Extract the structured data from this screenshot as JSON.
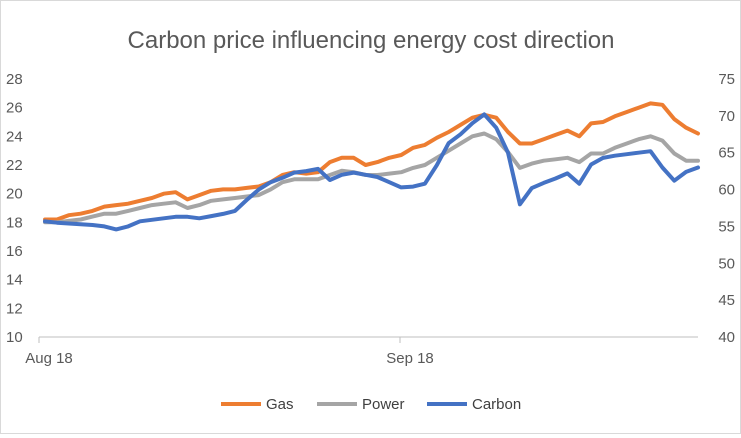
{
  "chart_data": {
    "type": "line",
    "title": "Carbon price influencing energy cost direction",
    "x_tick_labels": [
      "Aug 18",
      "Sep 18"
    ],
    "y_left": {
      "ticks": [
        10,
        12,
        14,
        16,
        18,
        20,
        22,
        24,
        26,
        28
      ],
      "range": [
        10,
        28
      ]
    },
    "y_right": {
      "ticks": [
        40,
        45,
        50,
        55,
        60,
        65,
        70,
        75
      ],
      "range": [
        40,
        75
      ]
    },
    "legend_position": "bottom",
    "series": [
      {
        "name": "Gas",
        "axis": "left",
        "color": "#ED7D31",
        "values": [
          18.2,
          18.2,
          18.5,
          18.6,
          18.8,
          19.1,
          19.2,
          19.3,
          19.5,
          19.7,
          20.0,
          20.1,
          19.6,
          19.9,
          20.2,
          20.3,
          20.3,
          20.4,
          20.5,
          20.8,
          21.3,
          21.5,
          21.4,
          21.5,
          22.2,
          22.5,
          22.5,
          22.0,
          22.2,
          22.5,
          22.7,
          23.2,
          23.4,
          23.9,
          24.3,
          24.8,
          25.3,
          25.5,
          25.3,
          24.3,
          23.5,
          23.5,
          23.8,
          24.1,
          24.4,
          24.0,
          24.9,
          25.0,
          25.4,
          25.7,
          26.0,
          26.3,
          26.2,
          25.2,
          24.6,
          24.2
        ]
      },
      {
        "name": "Power",
        "axis": "left",
        "color": "#A5A5A5",
        "values": [
          18.0,
          18.0,
          18.1,
          18.2,
          18.4,
          18.6,
          18.6,
          18.8,
          19.0,
          19.2,
          19.3,
          19.4,
          19.0,
          19.2,
          19.5,
          19.6,
          19.7,
          19.8,
          19.9,
          20.3,
          20.8,
          21.0,
          21.0,
          21.0,
          21.3,
          21.6,
          21.5,
          21.3,
          21.3,
          21.4,
          21.5,
          21.8,
          22.0,
          22.5,
          23.0,
          23.5,
          24.0,
          24.2,
          23.8,
          22.9,
          21.8,
          22.1,
          22.3,
          22.4,
          22.5,
          22.2,
          22.8,
          22.8,
          23.2,
          23.5,
          23.8,
          24.0,
          23.7,
          22.8,
          22.3,
          22.3
        ]
      },
      {
        "name": "Carbon",
        "axis": "right",
        "color": "#4472C4",
        "values": [
          55.7,
          55.5,
          55.4,
          55.3,
          55.2,
          55.0,
          54.6,
          55.0,
          55.7,
          55.9,
          56.1,
          56.3,
          56.3,
          56.1,
          56.4,
          56.7,
          57.1,
          58.6,
          60.0,
          61.0,
          61.6,
          62.3,
          62.5,
          62.8,
          61.3,
          62.0,
          62.3,
          62.0,
          61.7,
          61.0,
          60.3,
          60.4,
          60.8,
          63.3,
          66.3,
          67.5,
          69.0,
          70.2,
          68.4,
          65.0,
          58.0,
          60.2,
          60.9,
          61.5,
          62.2,
          60.8,
          63.4,
          64.3,
          64.6,
          64.8,
          65.0,
          65.2,
          63.0,
          61.2,
          62.4,
          63.0
        ]
      }
    ]
  }
}
